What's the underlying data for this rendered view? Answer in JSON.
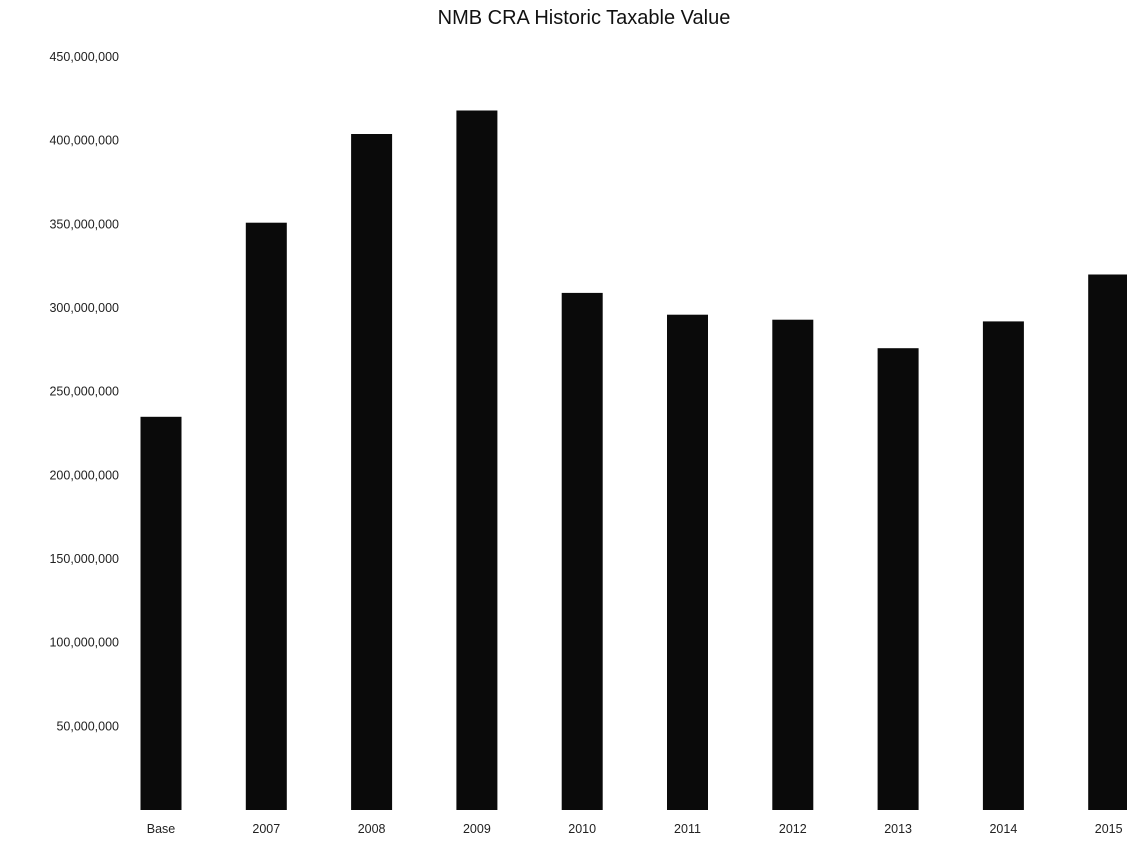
{
  "chart_data": {
    "type": "bar",
    "title": "NMB CRA Historic Taxable Value",
    "xlabel": "",
    "ylabel": "",
    "categories": [
      "Base",
      "2007",
      "2008",
      "2009",
      "2010",
      "2011",
      "2012",
      "2013",
      "2014",
      "2015"
    ],
    "values": [
      235000000,
      351000000,
      404000000,
      418000000,
      309000000,
      296000000,
      293000000,
      276000000,
      292000000,
      320000000
    ],
    "ylim": [
      0,
      450000000
    ],
    "y_ticks": [
      {
        "value": 50000000,
        "label": "50,000,000"
      },
      {
        "value": 100000000,
        "label": "100,000,000"
      },
      {
        "value": 150000000,
        "label": "150,000,000"
      },
      {
        "value": 200000000,
        "label": "200,000,000"
      },
      {
        "value": 250000000,
        "label": "250,000,000"
      },
      {
        "value": 300000000,
        "label": "300,000,000"
      },
      {
        "value": 350000000,
        "label": "350,000,000"
      },
      {
        "value": 400000000,
        "label": "400,000,000"
      },
      {
        "value": 450000000,
        "label": "450,000,000"
      }
    ],
    "grid": false,
    "legend": "none",
    "bar_color": "#0a0a0a"
  }
}
